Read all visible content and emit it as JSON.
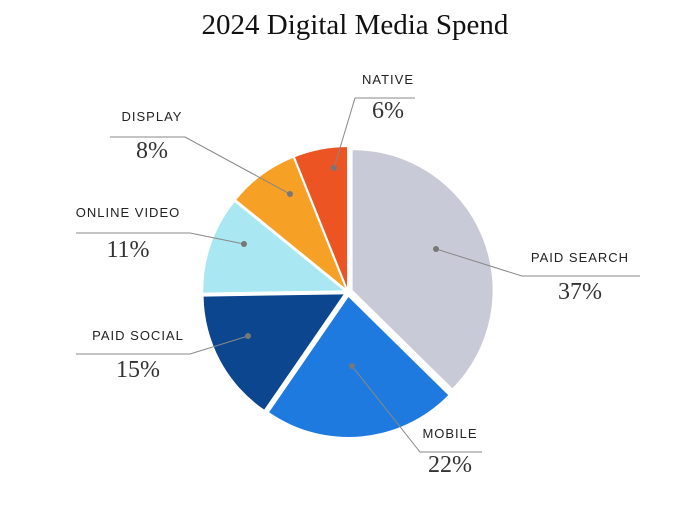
{
  "chart_data": {
    "type": "pie",
    "title": "2024 Digital Media Spend",
    "categories": [
      "PAID SEARCH",
      "MOBILE",
      "PAID SOCIAL",
      "ONLINE VIDEO",
      "DISPLAY",
      "NATIVE"
    ],
    "values": [
      37,
      22,
      15,
      11,
      8,
      6
    ],
    "value_labels": [
      "37%",
      "22%",
      "15%",
      "11%",
      "8%",
      "6%"
    ],
    "colors": [
      "#c9cad8",
      "#1f7ae0",
      "#0b468f",
      "#a9e7f3",
      "#f6a126",
      "#ec5424"
    ]
  }
}
